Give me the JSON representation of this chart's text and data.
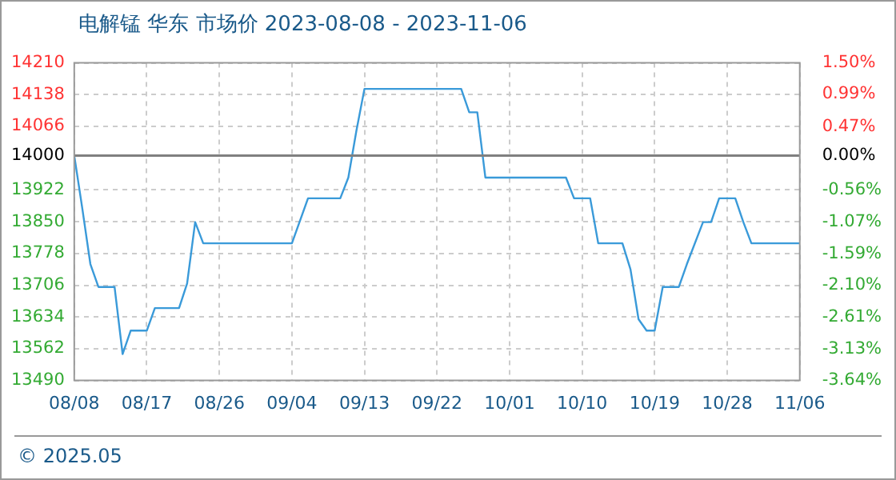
{
  "chart_data": {
    "type": "line",
    "title": "电解锰 华东 市场价 2023-08-08 - 2023-11-06",
    "annotations": [
      "© 2025.05"
    ],
    "series": [
      {
        "color": "#3a9ad9",
        "x": [
          "2023-08-08",
          "2023-08-09",
          "2023-08-10",
          "2023-08-11",
          "2023-08-13",
          "2023-08-14",
          "2023-08-15",
          "2023-08-17",
          "2023-08-18",
          "2023-08-21",
          "2023-08-22",
          "2023-08-23",
          "2023-08-24",
          "2023-09-04",
          "2023-09-06",
          "2023-09-10",
          "2023-09-11",
          "2023-09-12",
          "2023-09-13",
          "2023-09-25",
          "2023-09-26",
          "2023-09-27",
          "2023-09-28",
          "2023-10-08",
          "2023-10-09",
          "2023-10-11",
          "2023-10-12",
          "2023-10-15",
          "2023-10-16",
          "2023-10-17",
          "2023-10-18",
          "2023-10-19",
          "2023-10-20",
          "2023-10-22",
          "2023-10-23",
          "2023-10-25",
          "2023-10-26",
          "2023-10-27",
          "2023-10-29",
          "2023-10-30",
          "2023-10-31",
          "2023-11-06"
        ],
        "values": [
          14000,
          13880,
          13754,
          13702,
          13702,
          13550,
          13603,
          13603,
          13654,
          13654,
          13710,
          13849,
          13801,
          13801,
          13903,
          13903,
          13950,
          14056,
          14151,
          14151,
          14098,
          14098,
          13950,
          13950,
          13903,
          13903,
          13801,
          13801,
          13742,
          13629,
          13603,
          13603,
          13702,
          13702,
          13754,
          13849,
          13849,
          13903,
          13903,
          13849,
          13801,
          13801
        ]
      }
    ],
    "xlim": [
      "2023-08-08",
      "2023-11-06"
    ],
    "xticks": [
      {
        "value": "2023-08-08",
        "label": "08/08"
      },
      {
        "value": "2023-08-17",
        "label": "08/17"
      },
      {
        "value": "2023-08-26",
        "label": "08/26"
      },
      {
        "value": "2023-09-04",
        "label": "09/04"
      },
      {
        "value": "2023-09-13",
        "label": "09/13"
      },
      {
        "value": "2023-09-22",
        "label": "09/22"
      },
      {
        "value": "2023-10-01",
        "label": "10/01"
      },
      {
        "value": "2023-10-10",
        "label": "10/10"
      },
      {
        "value": "2023-10-19",
        "label": "10/19"
      },
      {
        "value": "2023-10-28",
        "label": "10/28"
      },
      {
        "value": "2023-11-06",
        "label": "11/06"
      }
    ],
    "ylim": [
      13490,
      14210
    ],
    "yticks": [
      13490,
      13562,
      13634,
      13706,
      13778,
      13850,
      13922,
      14000,
      14066,
      14138,
      14210
    ],
    "y2lim": [
      -3.64,
      1.5
    ],
    "y2ticks": [
      {
        "value": -3.64,
        "label": "-3.64%"
      },
      {
        "value": -3.13,
        "label": "-3.13%"
      },
      {
        "value": -2.61,
        "label": "-2.61%"
      },
      {
        "value": -2.1,
        "label": "-2.10%"
      },
      {
        "value": -1.59,
        "label": "-1.59%"
      },
      {
        "value": -1.07,
        "label": "-1.07%"
      },
      {
        "value": -0.56,
        "label": "-0.56%"
      },
      {
        "value": 0,
        "label": "0.00%"
      },
      {
        "value": 0.47,
        "label": "0.47%"
      },
      {
        "value": 0.99,
        "label": "0.99%"
      },
      {
        "value": 1.5,
        "label": "1.50%"
      }
    ],
    "ref_lines": [
      {
        "axis": "y",
        "value": 14000,
        "color": "#808080"
      }
    ],
    "grid": true,
    "legend": false,
    "marker": "none",
    "line_style": "solid"
  }
}
